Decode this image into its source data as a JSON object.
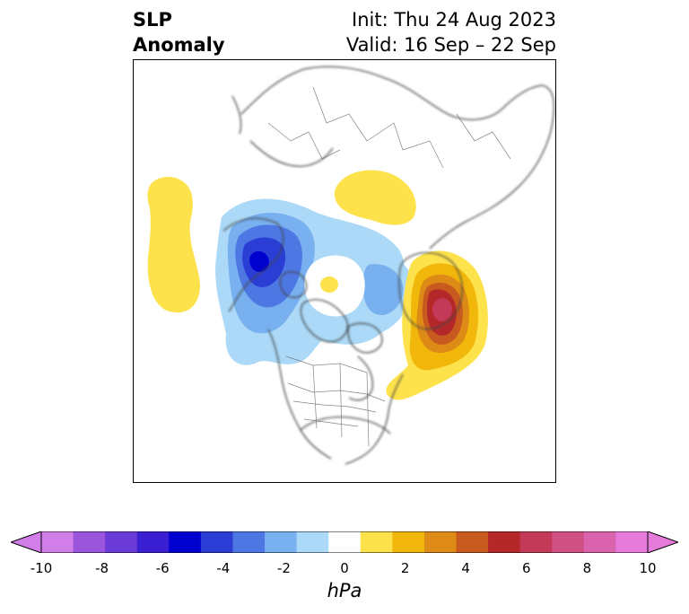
{
  "title": {
    "left_line1": "SLP",
    "left_line2": "Anomaly",
    "right_line1": "Init: Thu 24 Aug 2023",
    "right_line2": "Valid: 16 Sep – 22 Sep"
  },
  "colorbar": {
    "unit": "hPa",
    "ticks": [
      "-10",
      "-8",
      "-6",
      "-4",
      "-2",
      "0",
      "2",
      "4",
      "6",
      "8",
      "10"
    ],
    "colors": [
      "#d17ee8",
      "#9a55dc",
      "#6b3bd8",
      "#3a1ed2",
      "#0000cf",
      "#2a3ed6",
      "#4d78e4",
      "#78b0f0",
      "#abd9f7",
      "#ffffff",
      "#fde24c",
      "#f2b70b",
      "#dd8a17",
      "#c85a1f",
      "#b4282a",
      "#c23a57",
      "#cf5082",
      "#da63ad",
      "#e77bdb"
    ],
    "under_color": "#d17ee8",
    "over_color": "#e77bdb"
  }
}
